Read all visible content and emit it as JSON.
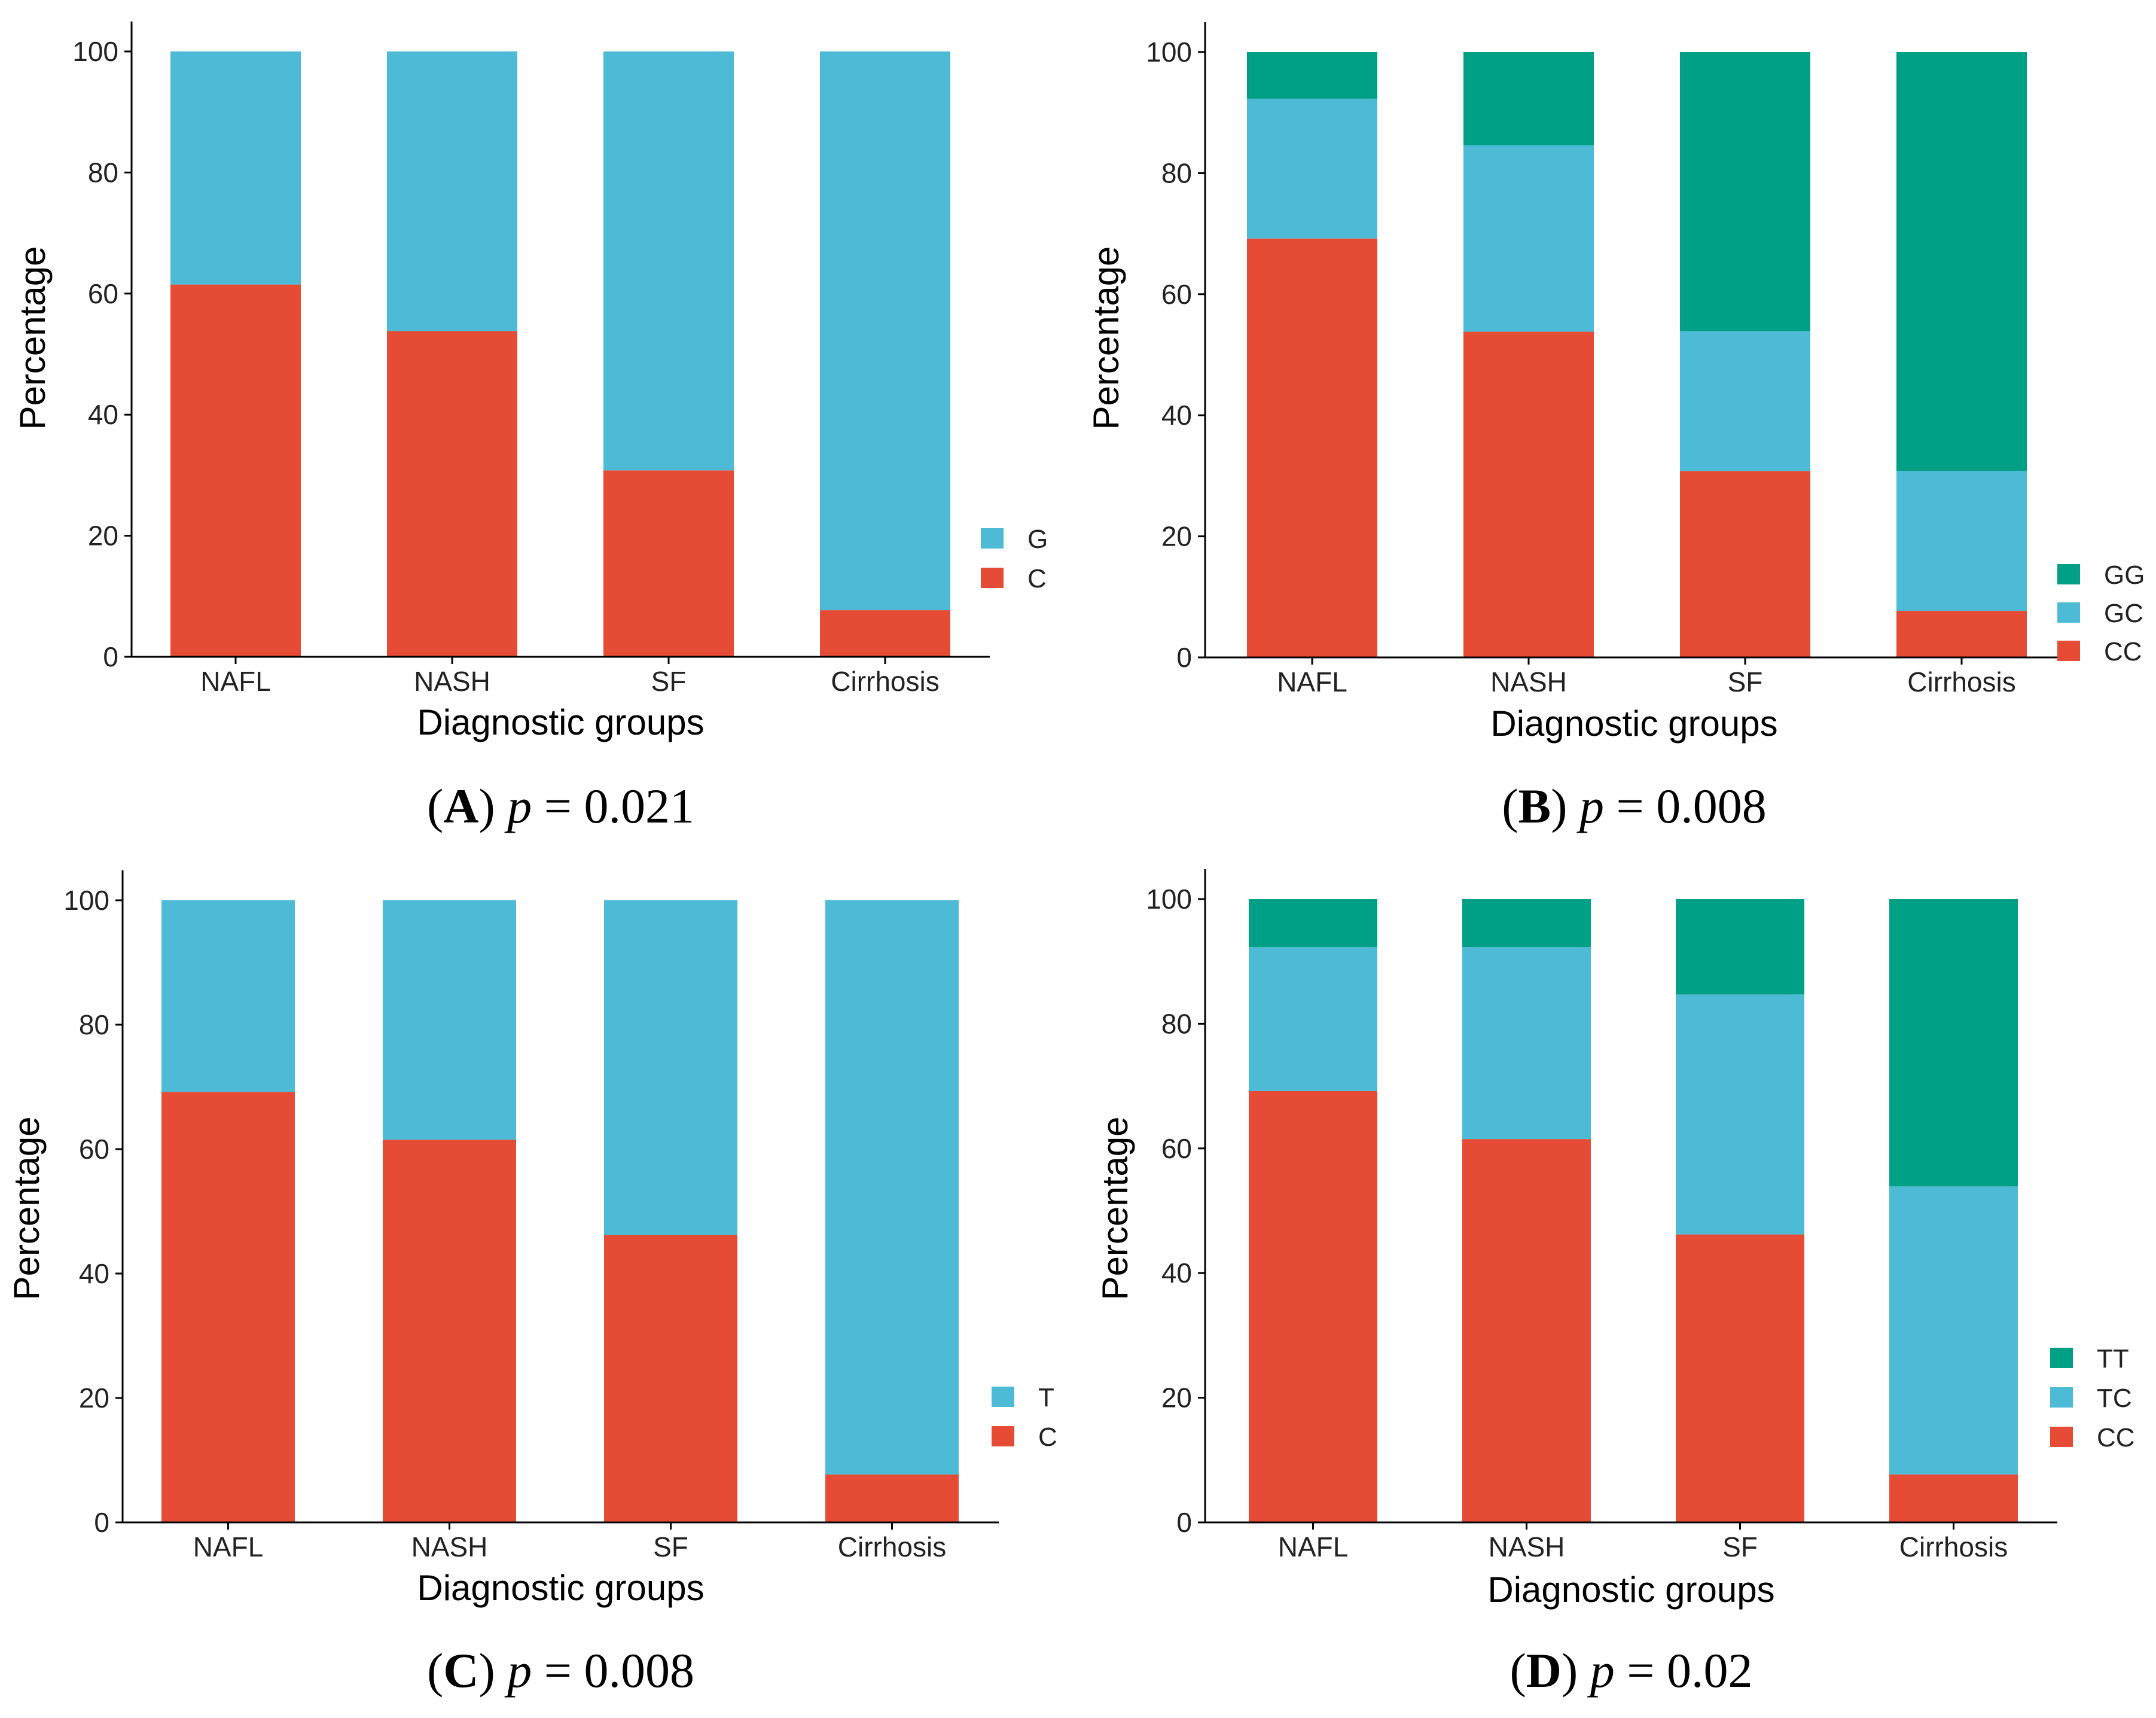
{
  "chart_data": [
    {
      "type": "bar",
      "stacked": true,
      "panel": "A",
      "p_value": "0.021",
      "xlabel": "Diagnostic groups",
      "ylabel": "Percentage",
      "ylim": [
        0,
        100
      ],
      "yticks": [
        0,
        20,
        40,
        60,
        80,
        100
      ],
      "categories": [
        "NAFL",
        "NASH",
        "SF",
        "Cirrhosis"
      ],
      "series": [
        {
          "name": "C",
          "color": "#E64B35",
          "values": [
            61.5,
            53.8,
            30.8,
            7.7
          ]
        },
        {
          "name": "G",
          "color": "#4DBBD5",
          "values": [
            38.5,
            46.2,
            69.2,
            92.3
          ]
        }
      ]
    },
    {
      "type": "bar",
      "stacked": true,
      "panel": "B",
      "p_value": "0.008",
      "xlabel": "Diagnostic groups",
      "ylabel": "Percentage",
      "ylim": [
        0,
        100
      ],
      "yticks": [
        0,
        20,
        40,
        60,
        80,
        100
      ],
      "categories": [
        "NAFL",
        "NASH",
        "SF",
        "Cirrhosis"
      ],
      "series": [
        {
          "name": "CC",
          "color": "#E64B35",
          "values": [
            69.2,
            53.8,
            30.8,
            7.7
          ]
        },
        {
          "name": "GC",
          "color": "#4DBBD5",
          "values": [
            23.1,
            30.8,
            23.1,
            23.1
          ]
        },
        {
          "name": "GG",
          "color": "#00A087",
          "values": [
            7.7,
            15.4,
            46.1,
            69.2
          ]
        }
      ]
    },
    {
      "type": "bar",
      "stacked": true,
      "panel": "C",
      "p_value": "0.008",
      "xlabel": "Diagnostic groups",
      "ylabel": "Percentage",
      "ylim": [
        0,
        100
      ],
      "yticks": [
        0,
        20,
        40,
        60,
        80,
        100
      ],
      "categories": [
        "NAFL",
        "NASH",
        "SF",
        "Cirrhosis"
      ],
      "series": [
        {
          "name": "C",
          "color": "#E64B35",
          "values": [
            69.2,
            61.5,
            46.2,
            7.7
          ]
        },
        {
          "name": "T",
          "color": "#4DBBD5",
          "values": [
            30.8,
            38.5,
            53.8,
            92.3
          ]
        }
      ]
    },
    {
      "type": "bar",
      "stacked": true,
      "panel": "D",
      "p_value": "0.02",
      "xlabel": "Diagnostic groups",
      "ylabel": "Percentage",
      "ylim": [
        0,
        100
      ],
      "yticks": [
        0,
        20,
        40,
        60,
        80,
        100
      ],
      "categories": [
        "NAFL",
        "NASH",
        "SF",
        "Cirrhosis"
      ],
      "series": [
        {
          "name": "CC",
          "color": "#E64B35",
          "values": [
            69.2,
            61.5,
            46.2,
            7.7
          ]
        },
        {
          "name": "TC",
          "color": "#4DBBD5",
          "values": [
            23.1,
            30.8,
            38.5,
            46.2
          ]
        },
        {
          "name": "TT",
          "color": "#00A087",
          "values": [
            7.7,
            7.7,
            15.3,
            46.1
          ]
        }
      ]
    }
  ]
}
